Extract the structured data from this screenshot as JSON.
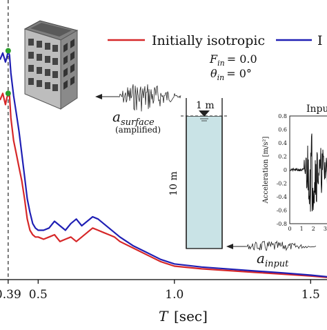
{
  "chart_data": {
    "type": "line",
    "xlabel": "T",
    "xlabel_unit": "[sec]",
    "x_ticks": [
      "0.39",
      "0.5",
      "1.0",
      "1.5"
    ],
    "x_tick_values": [
      0.39,
      0.5,
      1.0,
      1.5
    ],
    "xlim": [
      0.36,
      1.56
    ],
    "ylim": [
      0,
      1
    ],
    "grid": false,
    "legend_position": "top",
    "vline": 0.39,
    "series": [
      {
        "name": "Initially isotropic",
        "color": "#d62728",
        "x": [
          0.36,
          0.37,
          0.38,
          0.385,
          0.39,
          0.395,
          0.4,
          0.41,
          0.42,
          0.43,
          0.44,
          0.45,
          0.46,
          0.47,
          0.48,
          0.49,
          0.5,
          0.52,
          0.54,
          0.56,
          0.58,
          0.6,
          0.62,
          0.64,
          0.66,
          0.68,
          0.7,
          0.72,
          0.74,
          0.76,
          0.78,
          0.8,
          0.85,
          0.9,
          0.95,
          1.0,
          1.1,
          1.2,
          1.3,
          1.4,
          1.5,
          1.56
        ],
        "y": [
          0.8,
          0.83,
          0.78,
          0.81,
          0.83,
          0.82,
          0.72,
          0.62,
          0.56,
          0.5,
          0.44,
          0.36,
          0.27,
          0.22,
          0.2,
          0.19,
          0.19,
          0.18,
          0.19,
          0.2,
          0.17,
          0.18,
          0.19,
          0.17,
          0.19,
          0.21,
          0.23,
          0.22,
          0.21,
          0.2,
          0.19,
          0.17,
          0.14,
          0.11,
          0.08,
          0.06,
          0.048,
          0.04,
          0.032,
          0.024,
          0.016,
          0.01
        ]
      },
      {
        "name": "I",
        "color": "#1f1fb4",
        "x": [
          0.36,
          0.37,
          0.38,
          0.385,
          0.39,
          0.395,
          0.4,
          0.41,
          0.42,
          0.43,
          0.44,
          0.45,
          0.46,
          0.47,
          0.48,
          0.49,
          0.5,
          0.52,
          0.54,
          0.56,
          0.58,
          0.6,
          0.62,
          0.64,
          0.66,
          0.68,
          0.7,
          0.72,
          0.74,
          0.76,
          0.78,
          0.8,
          0.85,
          0.9,
          0.95,
          1.0,
          1.1,
          1.2,
          1.3,
          1.4,
          1.5,
          1.56
        ],
        "y": [
          0.98,
          1.01,
          0.97,
          0.99,
          1.02,
          1.0,
          0.92,
          0.82,
          0.74,
          0.66,
          0.56,
          0.46,
          0.36,
          0.3,
          0.25,
          0.23,
          0.22,
          0.22,
          0.23,
          0.26,
          0.24,
          0.22,
          0.25,
          0.27,
          0.24,
          0.26,
          0.28,
          0.27,
          0.25,
          0.23,
          0.21,
          0.19,
          0.15,
          0.12,
          0.09,
          0.07,
          0.056,
          0.047,
          0.038,
          0.03,
          0.02,
          0.013
        ]
      }
    ],
    "peaks": [
      {
        "series": "Initially isotropic",
        "x": 0.39,
        "y": 0.83,
        "color": "#2ca02c"
      },
      {
        "series": "I",
        "x": 0.39,
        "y": 1.02,
        "color": "#2ca02c"
      }
    ]
  },
  "legend": {
    "items": [
      {
        "label": "Initially isotropic",
        "color": "#d62728"
      },
      {
        "label": "I",
        "color": "#1f1fb4"
      }
    ]
  },
  "params": {
    "f_main": "F",
    "f_sub": "in",
    "f_val": "= 0.0",
    "theta_main": "θ",
    "theta_sub": "in",
    "theta_val": "= 0°"
  },
  "surface_label": {
    "main": "a",
    "sub": "surface",
    "note": "(amplified)"
  },
  "input_label": {
    "main": "a",
    "sub": "input"
  },
  "soil": {
    "depth_label": "10 m",
    "water_label": "1 m"
  },
  "inset": {
    "title": "Inpu",
    "ylabel": "Acceleration [m/s²]",
    "y_ticks": [
      "0.8",
      "0.6",
      "0.4",
      "0.2",
      "0",
      "-0.2",
      "-0.4",
      "-0.6",
      "-0.8"
    ],
    "y_tick_values": [
      0.8,
      0.6,
      0.4,
      0.2,
      0,
      -0.2,
      -0.4,
      -0.6,
      -0.8
    ],
    "x_ticks": [
      "0",
      "1",
      "2",
      "3"
    ],
    "x_tick_values": [
      0,
      1,
      2,
      3
    ],
    "xlim": [
      0,
      3.5
    ],
    "ylim": [
      -0.8,
      0.8
    ]
  }
}
